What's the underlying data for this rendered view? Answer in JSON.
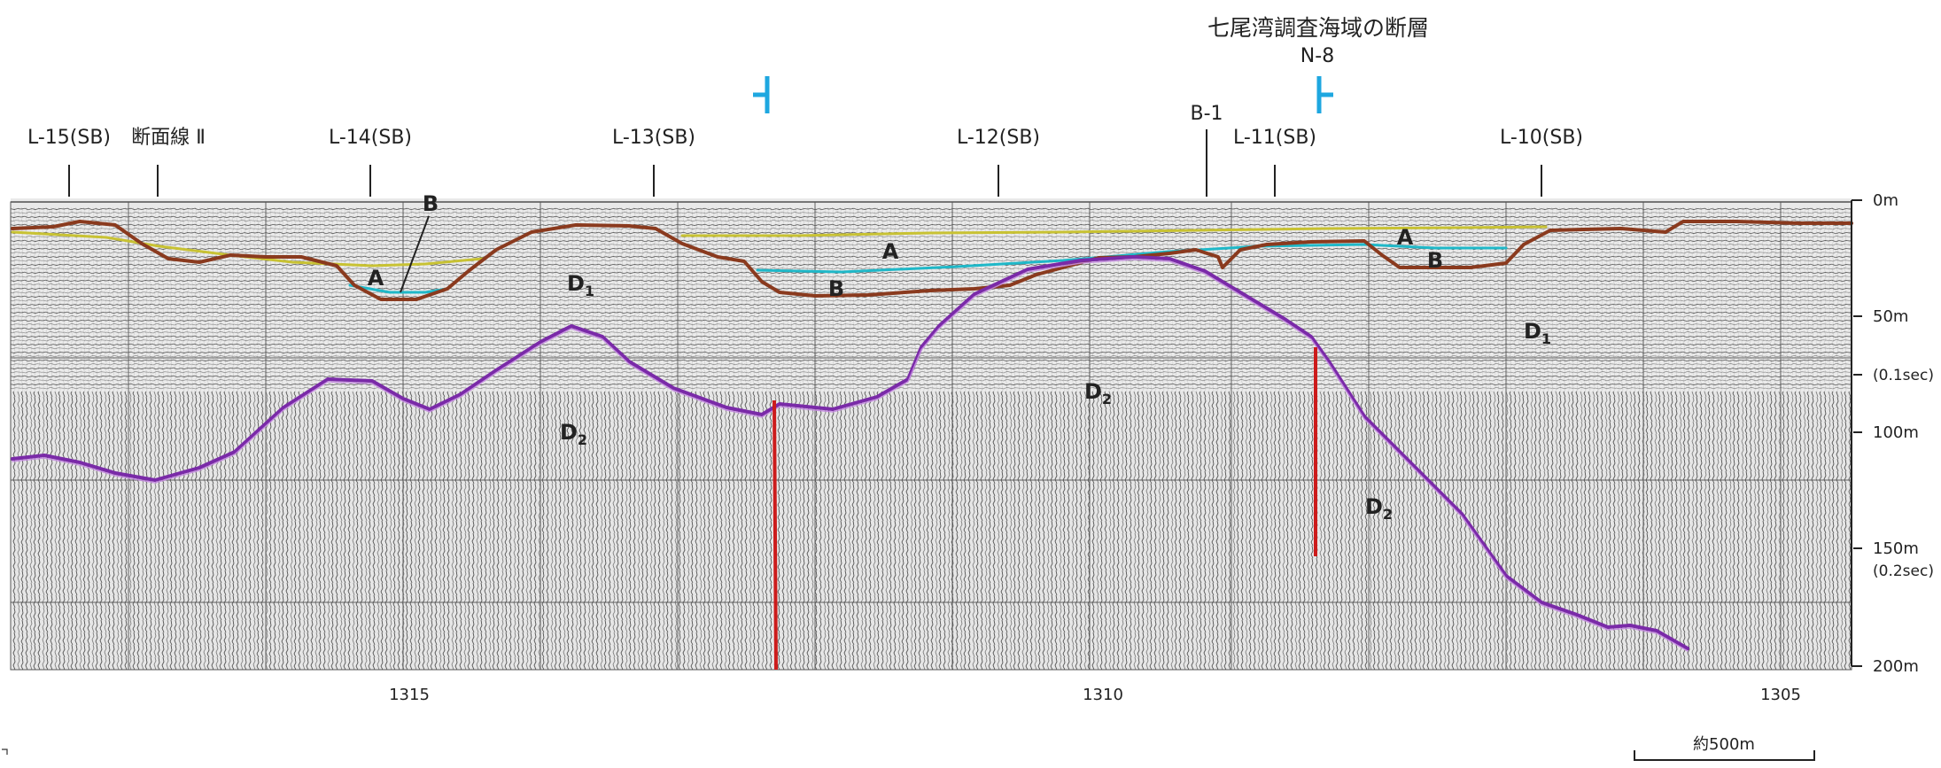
{
  "title": "七尾湾調査海域の断層",
  "section_id": "N-8",
  "top_labels": [
    {
      "id": "l15",
      "text": "L-15(SB)"
    },
    {
      "id": "section2",
      "text": "断面線 Ⅱ"
    },
    {
      "id": "l14",
      "text": "L-14(SB)"
    },
    {
      "id": "l13",
      "text": "L-13(SB)"
    },
    {
      "id": "l12",
      "text": "L-12(SB)"
    },
    {
      "id": "b1",
      "text": "B-1"
    },
    {
      "id": "l11",
      "text": "L-11(SB)"
    },
    {
      "id": "l10",
      "text": "L-10(SB)"
    }
  ],
  "depth_labels": [
    {
      "text": "0m"
    },
    {
      "text": "50m"
    },
    {
      "text": "(0.1sec)"
    },
    {
      "text": "100m"
    },
    {
      "text": "150m"
    },
    {
      "text": "(0.2sec)"
    },
    {
      "text": "200m"
    }
  ],
  "bottom_labels": [
    {
      "text": "1315"
    },
    {
      "text": "1310"
    },
    {
      "text": "1305"
    }
  ],
  "scale_label": "約500m",
  "geo_labels": [
    {
      "id": "b-l14",
      "main": "B",
      "sub": ""
    },
    {
      "id": "a-l14",
      "main": "A",
      "sub": ""
    },
    {
      "id": "d1-left",
      "main": "D",
      "sub": "1"
    },
    {
      "id": "a-mid",
      "main": "A",
      "sub": ""
    },
    {
      "id": "b-mid",
      "main": "B",
      "sub": ""
    },
    {
      "id": "a-right",
      "main": "A",
      "sub": ""
    },
    {
      "id": "b-right",
      "main": "B",
      "sub": ""
    },
    {
      "id": "d1-right",
      "main": "D",
      "sub": "1"
    },
    {
      "id": "d2-left",
      "main": "D",
      "sub": "2"
    },
    {
      "id": "d2-mid",
      "main": "D",
      "sub": "2"
    },
    {
      "id": "d2-right",
      "main": "D",
      "sub": "2"
    }
  ],
  "colors": {
    "horizon_yellow": "#c8c233",
    "horizon_cyan": "#1fb8c8",
    "horizon_brown": "#8a3a1e",
    "horizon_purple": "#7a2aa8",
    "fault_red": "#cc1b1b",
    "marker_blue": "#1ea7e0"
  }
}
